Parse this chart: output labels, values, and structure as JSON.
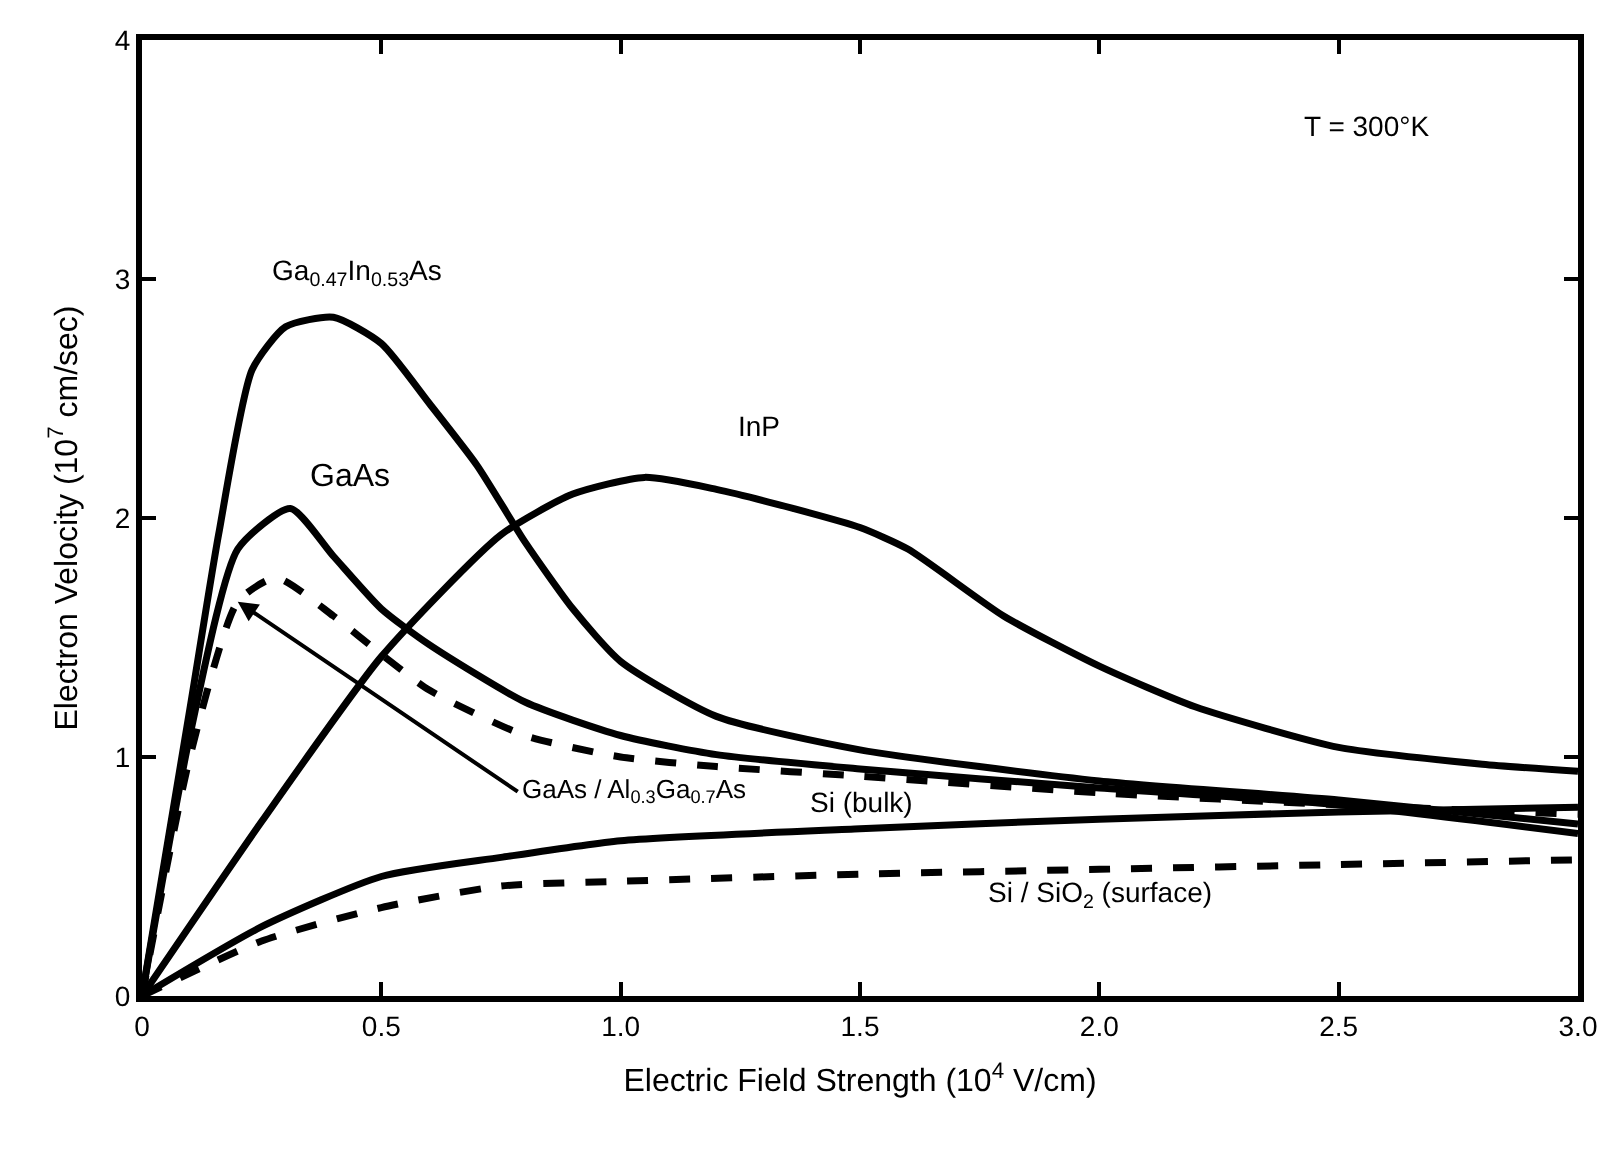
{
  "chart_data": {
    "type": "line",
    "xlabel": "Electric Field Strength (10$^{4}$ V/cm)",
    "ylabel": "Electron Velocity (10$^{7}$ cm/sec)",
    "xlim": [
      0,
      3.0
    ],
    "ylim": [
      0,
      4
    ],
    "xticks": [
      0,
      0.5,
      {
        "value": 1,
        "label": "1.0"
      },
      1.5,
      {
        "value": 2,
        "label": "2.0"
      },
      2.5,
      {
        "value": 3,
        "label": "3.0"
      }
    ],
    "yticks": [
      0,
      1,
      2,
      3,
      4
    ],
    "grid": false,
    "legend": false,
    "marker": "none",
    "series": [
      {
        "name": "Ga$_{0.47}$In$_{0.53}$As",
        "color": "#000000",
        "line_style": "solid",
        "x": [
          0,
          0.1,
          0.16,
          0.23,
          0.3,
          0.4,
          0.5,
          0.6,
          0.7,
          0.8,
          0.9,
          1.0,
          1.2,
          1.5,
          2.0,
          2.5,
          3.0
        ],
        "values": [
          0,
          1.2,
          1.93,
          2.62,
          2.8,
          2.84,
          2.73,
          2.48,
          2.22,
          1.9,
          1.62,
          1.4,
          1.17,
          1.03,
          0.9,
          0.82,
          0.72
        ]
      },
      {
        "name": "GaAs",
        "color": "#000000",
        "line_style": "solid",
        "x": [
          0,
          0.1,
          0.2,
          0.31,
          0.4,
          0.5,
          0.6,
          0.8,
          1.0,
          1.2,
          1.5,
          2.0,
          2.5,
          3.0
        ],
        "values": [
          0,
          1.09,
          1.87,
          2.04,
          1.84,
          1.62,
          1.47,
          1.23,
          1.09,
          1.01,
          0.95,
          0.87,
          0.8,
          0.68
        ]
      },
      {
        "name": "GaAs / Al$_{0.3}$Ga$_{0.7}$As",
        "color": "#000000",
        "line_style": "dashed",
        "x": [
          0,
          0.1,
          0.2,
          0.28,
          0.4,
          0.5,
          0.6,
          0.8,
          1.0,
          1.2,
          1.5,
          2.0,
          2.5,
          3.0
        ],
        "values": [
          0,
          1.0,
          1.65,
          1.75,
          1.59,
          1.43,
          1.28,
          1.09,
          1.0,
          0.96,
          0.92,
          0.85,
          0.8,
          0.76
        ]
      },
      {
        "name": "InP",
        "color": "#000000",
        "line_style": "solid",
        "x": [
          0,
          0.25,
          0.5,
          0.75,
          0.9,
          1.05,
          1.2,
          1.36,
          1.5,
          1.6,
          1.8,
          2.0,
          2.2,
          2.5,
          2.8,
          3.0
        ],
        "values": [
          0,
          0.73,
          1.42,
          1.93,
          2.1,
          2.17,
          2.12,
          2.04,
          1.96,
          1.87,
          1.59,
          1.38,
          1.21,
          1.04,
          0.97,
          0.94
        ]
      },
      {
        "name": "Si (bulk)",
        "color": "#000000",
        "line_style": "solid",
        "x": [
          0,
          0.25,
          0.5,
          0.75,
          1.0,
          1.5,
          2.0,
          2.5,
          3.0
        ],
        "values": [
          0,
          0.29,
          0.5,
          0.58,
          0.65,
          0.7,
          0.74,
          0.77,
          0.79
        ]
      },
      {
        "name": "Si / SiO$_{2}$ (surface)",
        "color": "#000000",
        "line_style": "dashed",
        "x": [
          0,
          0.25,
          0.5,
          0.75,
          1.0,
          1.5,
          2.0,
          2.5,
          3.0
        ],
        "values": [
          0,
          0.23,
          0.37,
          0.46,
          0.48,
          0.51,
          0.53,
          0.55,
          0.57
        ]
      }
    ],
    "annotations": [
      "T = 300°K"
    ]
  }
}
